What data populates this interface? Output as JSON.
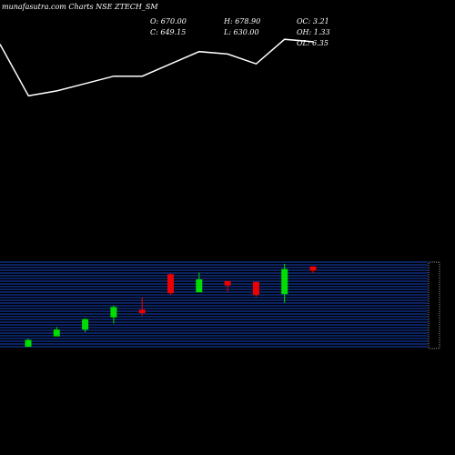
{
  "header": {
    "title": "munafasutra.com Charts NSE ZTECH_SM",
    "open": "O: 670.00",
    "close": "C: 649.15",
    "high": "H: 678.90",
    "low": "L: 630.00",
    "oc": "OC: 3.21",
    "oh": "OH: 1.33",
    "ol": "OL: 6.35"
  },
  "colors": {
    "background": "#000000",
    "line": "#ffffff",
    "grid": "#1e5cff",
    "up": "#00dd00",
    "down": "#ee0000"
  },
  "chart_data": [
    {
      "type": "line",
      "title": "",
      "series": [
        {
          "values": [
            0.82,
            0.61,
            0.63,
            0.66,
            0.69,
            0.69,
            0.74,
            0.79,
            0.78,
            0.74,
            0.84,
            0.83
          ]
        }
      ],
      "ylim": [
        0,
        1
      ],
      "grid": false
    },
    {
      "type": "candlestick",
      "title": "",
      "candles": [
        {
          "open": 2,
          "close": 10,
          "high": 11,
          "low": 2,
          "direction": "up"
        },
        {
          "open": 14,
          "close": 22,
          "high": 25,
          "low": 14,
          "direction": "up"
        },
        {
          "open": 22,
          "close": 34,
          "high": 35,
          "low": 19,
          "direction": "up"
        },
        {
          "open": 36,
          "close": 48,
          "high": 50,
          "low": 29,
          "direction": "up"
        },
        {
          "open": 45,
          "close": 41,
          "high": 59,
          "low": 38,
          "direction": "down"
        },
        {
          "open": 86,
          "close": 64,
          "high": 87,
          "low": 62,
          "direction": "down"
        },
        {
          "open": 65,
          "close": 80,
          "high": 88,
          "low": 65,
          "direction": "up"
        },
        {
          "open": 78,
          "close": 73,
          "high": 78,
          "low": 66,
          "direction": "down"
        },
        {
          "open": 77,
          "close": 62,
          "high": 77,
          "low": 60,
          "direction": "down"
        },
        {
          "open": 63,
          "close": 92,
          "high": 98,
          "low": 53,
          "direction": "up"
        },
        {
          "open": 95,
          "close": 90,
          "high": 95,
          "low": 87,
          "direction": "down"
        }
      ],
      "ylim": [
        0,
        100
      ],
      "grid": true
    }
  ]
}
